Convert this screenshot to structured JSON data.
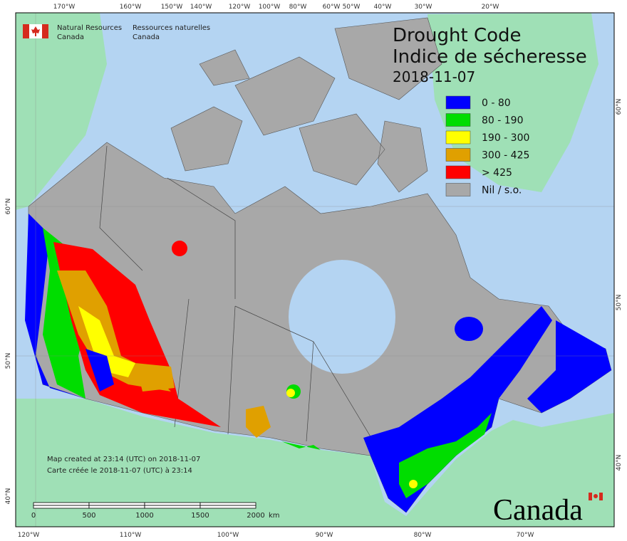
{
  "header": {
    "org_en": [
      "Natural Resources",
      "Canada"
    ],
    "org_fr": [
      "Ressources naturelles",
      "Canada"
    ]
  },
  "title": {
    "lines": [
      "Drought Code",
      "Indice de sécheresse"
    ],
    "date": "2018-11-07"
  },
  "legend": [
    {
      "label": "0 - 80",
      "color": "#0000ff"
    },
    {
      "label": "80 - 190",
      "color": "#00dd00"
    },
    {
      "label": "190 - 300",
      "color": "#ffff00"
    },
    {
      "label": "300 - 425",
      "color": "#e0a000"
    },
    {
      "label": "> 425",
      "color": "#ff0000"
    },
    {
      "label": "Nil / s.o.",
      "color": "#a8a8a8"
    }
  ],
  "graticule": {
    "top": [
      "170°W",
      "160°W",
      "150°W",
      "140°W",
      "120°W",
      "100°W",
      "80°W",
      "60°W",
      "50°W",
      "40°W",
      "30°W",
      "20°W"
    ],
    "bottom": [
      "120°W",
      "110°W",
      "100°W",
      "90°W",
      "80°W",
      "70°W"
    ],
    "left": [
      "60°N",
      "50°N",
      "40°N"
    ],
    "right": [
      "60°N",
      "50°N",
      "40°N"
    ]
  },
  "notes": [
    "Map created at 23:14 (UTC) on 2018-11-07",
    "Carte créée le 2018-11-07 (UTC) à 23:14"
  ],
  "scale_bar": {
    "ticks": [
      0,
      500,
      1000,
      1500,
      2000
    ],
    "unit": "km"
  },
  "wordmark": "Canada"
}
